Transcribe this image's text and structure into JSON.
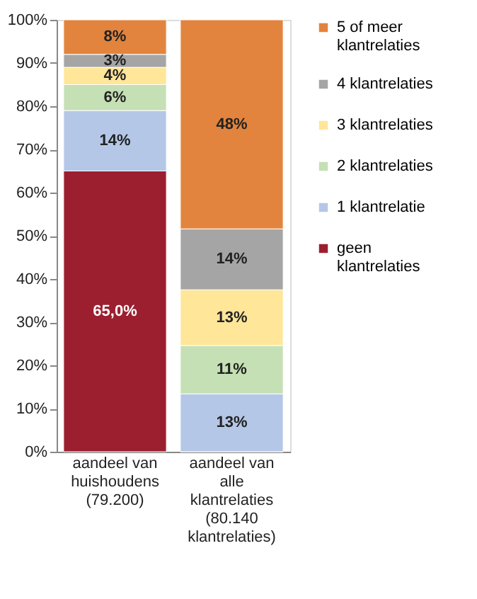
{
  "chart_data": {
    "type": "bar",
    "stacked": true,
    "categories": [
      "aandeel van huishoudens (79.200)",
      "aandeel van alle klantrelaties (80.140 klantrelaties)"
    ],
    "series": [
      {
        "name": "geen klantrelaties",
        "color": "#9b1f2f",
        "values": [
          65.0,
          0
        ],
        "value_labels": [
          "65,0%",
          null
        ]
      },
      {
        "name": "1 klantrelatie",
        "color": "#b4c7e7",
        "values": [
          14,
          13.4
        ],
        "value_labels": [
          "14%",
          "13%"
        ]
      },
      {
        "name": "2 klantrelaties",
        "color": "#c5e0b4",
        "values": [
          6,
          11.2
        ],
        "value_labels": [
          "6%",
          "11%"
        ]
      },
      {
        "name": "3 klantrelaties",
        "color": "#ffe699",
        "values": [
          4,
          12.9
        ],
        "value_labels": [
          "4%",
          "13%"
        ]
      },
      {
        "name": "4 klantrelaties",
        "color": "#a5a5a5",
        "values": [
          3,
          14.1
        ],
        "value_labels": [
          "3%",
          "14%"
        ]
      },
      {
        "name": "5 of meer klantrelaties",
        "color": "#e2843e",
        "values": [
          8,
          48.4
        ],
        "value_labels": [
          "8%",
          "48%"
        ]
      }
    ],
    "ylim": [
      0,
      100
    ],
    "yticks": [
      {
        "value": 0,
        "label": "0%"
      },
      {
        "value": 10,
        "label": "10%"
      },
      {
        "value": 20,
        "label": "20%"
      },
      {
        "value": 30,
        "label": "30%"
      },
      {
        "value": 40,
        "label": "40%"
      },
      {
        "value": 50,
        "label": "50%"
      },
      {
        "value": 60,
        "label": "60%"
      },
      {
        "value": 70,
        "label": "70%"
      },
      {
        "value": 80,
        "label": "80%"
      },
      {
        "value": 90,
        "label": "90%"
      },
      {
        "value": 100,
        "label": "100%"
      }
    ],
    "grid": false,
    "legend": "right"
  }
}
